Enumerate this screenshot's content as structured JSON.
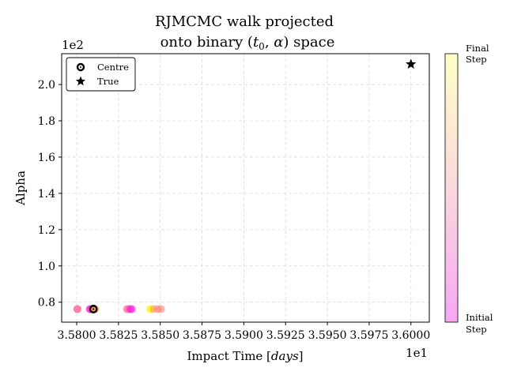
{
  "chart_data": {
    "type": "scatter",
    "title_line1": "RJMCMC walk projected",
    "title_line2_prefix": "onto binary (",
    "title_line2_t0": "t",
    "title_line2_t0_sub": "0",
    "title_line2_sep": ", ",
    "title_line2_alpha": "α",
    "title_line2_suffix": ") space",
    "xlabel_prefix": "Impact Time [",
    "xlabel_unit": "days",
    "xlabel_suffix": "]",
    "ylabel": "Alpha",
    "x_offset_label": "1e1",
    "y_offset_label": "1e2",
    "xlim": [
      3.5791,
      3.6011
    ],
    "ylim": [
      0.69,
      2.17
    ],
    "x_ticks": [
      3.58,
      3.5825,
      3.585,
      3.5875,
      3.59,
      3.5925,
      3.595,
      3.5975,
      3.6
    ],
    "x_tick_labels": [
      "3.5800",
      "3.5825",
      "3.5850",
      "3.5875",
      "3.5900",
      "3.5925",
      "3.5950",
      "3.5975",
      "3.6000"
    ],
    "y_ticks": [
      0.8,
      1.0,
      1.2,
      1.4,
      1.6,
      1.8,
      2.0
    ],
    "y_tick_labels": [
      "0.8",
      "1.0",
      "1.2",
      "1.4",
      "1.6",
      "1.8",
      "2.0"
    ],
    "grid": true,
    "legend_position": "top-left",
    "legend": [
      {
        "label": "Centre",
        "marker": "ring"
      },
      {
        "label": "True",
        "marker": "star"
      }
    ],
    "walk": [
      {
        "x": 3.58003,
        "y": 0.762,
        "step": 0.38
      },
      {
        "x": 3.58005,
        "y": 0.762,
        "step": 0.42
      },
      {
        "x": 3.58078,
        "y": 0.762,
        "step": 0.08
      },
      {
        "x": 3.58085,
        "y": 0.762,
        "step": 0.12
      },
      {
        "x": 3.58092,
        "y": 0.762,
        "step": 0.2
      },
      {
        "x": 3.58098,
        "y": 0.762,
        "step": 0.3
      },
      {
        "x": 3.58105,
        "y": 0.762,
        "step": 0.55
      },
      {
        "x": 3.58112,
        "y": 0.762,
        "step": 0.7
      },
      {
        "x": 3.583,
        "y": 0.762,
        "step": 0.4
      },
      {
        "x": 3.5831,
        "y": 0.762,
        "step": 0.45
      },
      {
        "x": 3.58322,
        "y": 0.762,
        "step": 0.05
      },
      {
        "x": 3.5833,
        "y": 0.762,
        "step": 0.15
      },
      {
        "x": 3.58438,
        "y": 0.762,
        "step": 0.97
      },
      {
        "x": 3.58445,
        "y": 0.762,
        "step": 0.99
      },
      {
        "x": 3.5846,
        "y": 0.762,
        "step": 0.6
      },
      {
        "x": 3.58485,
        "y": 0.762,
        "step": 0.5
      },
      {
        "x": 3.58505,
        "y": 0.762,
        "step": 0.52
      }
    ],
    "centre": {
      "x": 3.581,
      "y": 0.762
    },
    "true_point": {
      "x": 3.6,
      "y": 2.112
    },
    "colorbar": {
      "top_label_line1": "Final",
      "top_label_line2": "Step",
      "bottom_label_line1": "Initial",
      "bottom_label_line2": "Step",
      "colormap": "spring (with transparency)"
    }
  }
}
